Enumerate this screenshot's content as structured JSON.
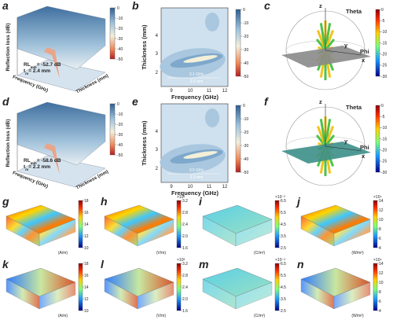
{
  "panels": {
    "a": {
      "label": "a",
      "y_axis": "Reflection loss (dB)",
      "x_axis": "Frequency (GHz)",
      "z_axis": "Thickness (mm)",
      "rl": "RL",
      "rl_sub": "min",
      "rl_value": "= -52.7 dB",
      "t": "t",
      "t_sub": "m",
      "t_value": "= 2.4 mm",
      "colorbar_ticks": [
        "0",
        "-10",
        "-20",
        "-30",
        "-40",
        "-50"
      ]
    },
    "b": {
      "label": "b",
      "y_axis": "Thickness (mm)",
      "x_axis": "Frequency (GHz)",
      "xticks": [
        "9",
        "10",
        "11",
        "12"
      ],
      "yticks": [
        "4",
        "3",
        "2"
      ],
      "bandwidth": "3.1 GHz",
      "thickness": "2.6 mm",
      "colorbar_ticks": [
        "0",
        "-10",
        "-20",
        "-30",
        "-40",
        "-50"
      ]
    },
    "c": {
      "label": "c",
      "axes": [
        "z",
        "Theta",
        "y",
        "Phi",
        "x"
      ],
      "colorbar_ticks": [
        "0",
        "-5",
        "-10",
        "-15",
        "-20",
        "-25",
        "-30"
      ]
    },
    "d": {
      "label": "d",
      "y_axis": "Reflection loss (dB)",
      "x_axis": "Frequency (GHz)",
      "z_axis": "Thickness (mm)",
      "rl": "RL",
      "rl_sub": "min",
      "rl_value": "= -58.6 dB",
      "t": "t",
      "t_sub": "m",
      "t_value": "= 2.2 mm",
      "colorbar_ticks": [
        "0",
        "-10",
        "-20",
        "-30",
        "-40",
        "-50"
      ]
    },
    "e": {
      "label": "e",
      "y_axis": "Thickness (mm)",
      "x_axis": "Frequency (GHz)",
      "xticks": [
        "9",
        "10",
        "11",
        "12"
      ],
      "yticks": [
        "4",
        "3",
        "2"
      ],
      "bandwidth": "3.5 GHz",
      "thickness": "2.9 mm",
      "colorbar_ticks": [
        "0",
        "-10",
        "-20",
        "-30",
        "-40",
        "-50"
      ]
    },
    "f": {
      "label": "f",
      "axes": [
        "z",
        "Theta",
        "y",
        "Phi",
        "x"
      ],
      "colorbar_ticks": [
        "0",
        "-5",
        "-10",
        "-15",
        "-20",
        "-25",
        "-30"
      ]
    }
  },
  "maps": [
    {
      "label": "g",
      "ticks": [
        "18",
        "16",
        "14",
        "12",
        "10"
      ],
      "unit": "(A/m)"
    },
    {
      "label": "h",
      "exponent": "×10³",
      "ticks": [
        "3.2",
        "2.8",
        "2.4",
        "2.0",
        "1.6"
      ],
      "unit": "(V/m)"
    },
    {
      "label": "i",
      "exponent": "×10⁻³",
      "ticks": [
        "6.5",
        "5.5",
        "4.5",
        "3.5",
        "2.5"
      ],
      "unit": "(C/m²)"
    },
    {
      "label": "j",
      "exponent": "×10⁴",
      "ticks": [
        "14",
        "12",
        "10",
        "8",
        "6",
        "4"
      ],
      "unit": "(W/m³)"
    },
    {
      "label": "k",
      "ticks": [
        "18",
        "16",
        "14",
        "12",
        "10"
      ],
      "unit": "(A/m)"
    },
    {
      "label": "l",
      "exponent": "×10³",
      "ticks": [
        "3.2",
        "2.8",
        "2.4",
        "2.0",
        "1.6"
      ],
      "unit": "(V/m)"
    },
    {
      "label": "m",
      "exponent": "×10⁻³",
      "ticks": [
        "6.5",
        "5.5",
        "4.5",
        "3.5",
        "2.5"
      ],
      "unit": "(C/m²)"
    },
    {
      "label": "n",
      "exponent": "×10⁴",
      "ticks": [
        "14",
        "12",
        "10",
        "8",
        "6",
        "4"
      ],
      "unit": "(W/m³)"
    }
  ]
}
